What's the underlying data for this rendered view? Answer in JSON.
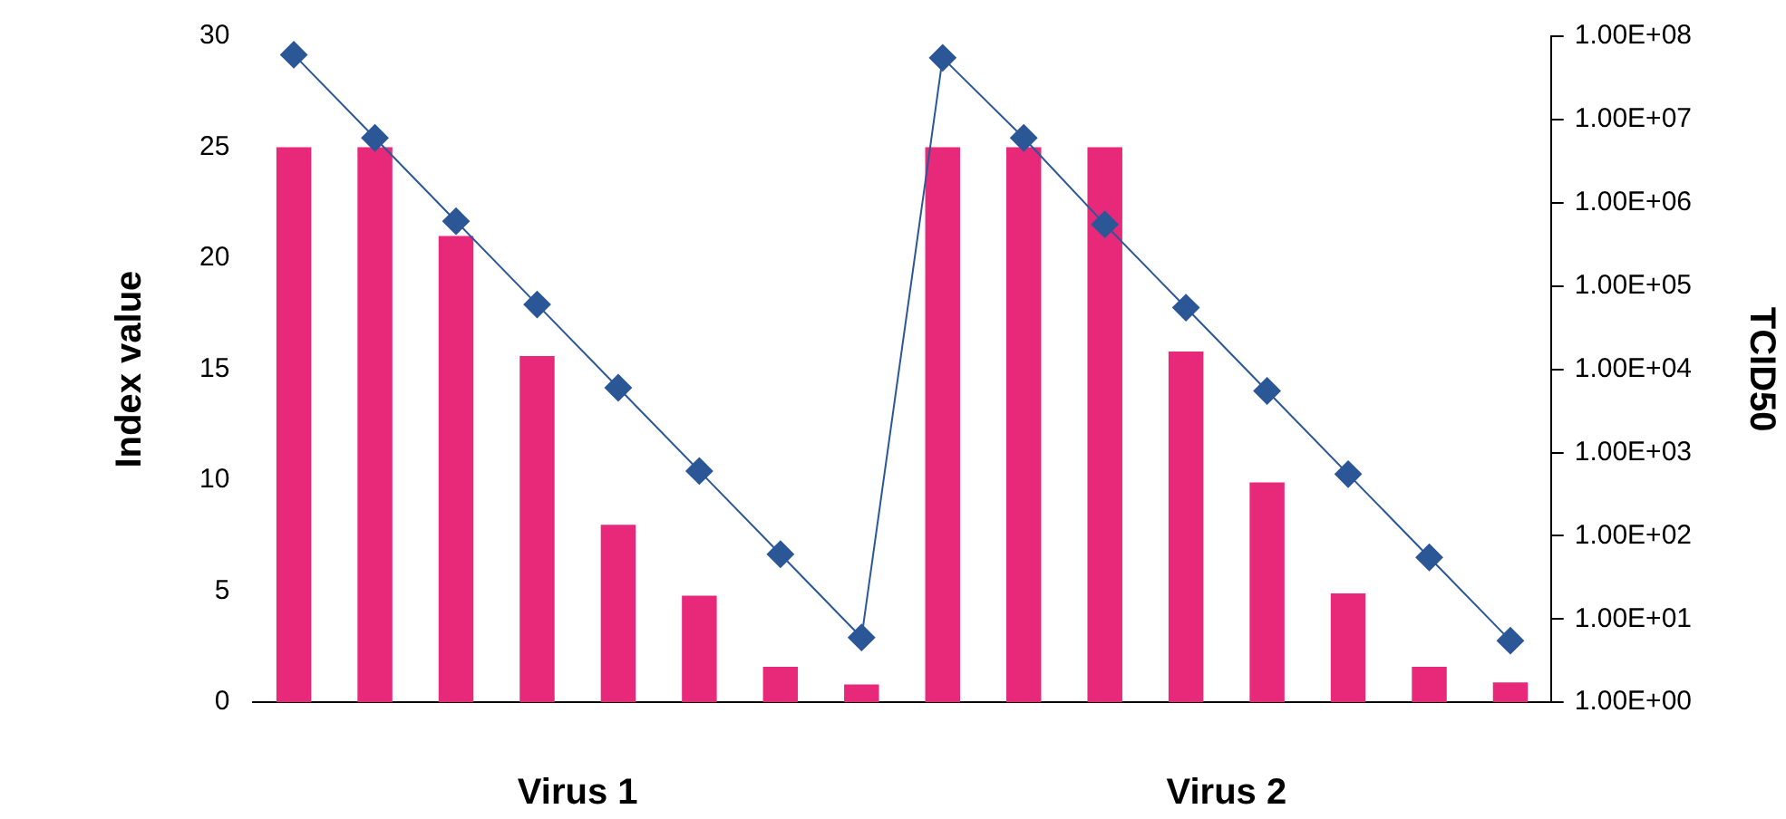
{
  "chart_data": {
    "type": "bar",
    "ylabel": "Index value",
    "y2label": "TCID50",
    "categories": [
      null,
      null,
      null,
      null,
      null,
      null,
      null,
      null,
      null,
      null,
      null,
      null,
      null,
      null,
      null,
      null
    ],
    "annotations": [
      "Virus 1",
      "Virus 2"
    ],
    "series": [
      {
        "color": "#e8297a",
        "values": [
          25,
          25,
          21,
          15.6,
          8,
          4.8,
          1.6,
          0.8,
          25,
          25,
          25,
          15.8,
          9.9,
          4.9,
          1.6,
          0.9
        ]
      },
      {
        "type": "line",
        "axis": "y2",
        "color": "#2b5797",
        "values": [
          60000000,
          6000000,
          600000,
          60000,
          6000,
          600,
          60,
          6,
          55000000,
          6000000,
          550000,
          55000,
          5500,
          550,
          55,
          5.5
        ]
      }
    ],
    "ylim": [
      0,
      30
    ],
    "yticks": [
      0,
      5,
      10,
      15,
      20,
      25,
      30
    ],
    "y2lim": [
      1,
      100000000
    ],
    "y2ticks": [
      {
        "value": 1,
        "label": "1.00E+00"
      },
      {
        "value": 10,
        "label": "1.00E+01"
      },
      {
        "value": 100,
        "label": "1.00E+02"
      },
      {
        "value": 1000,
        "label": "1.00E+03"
      },
      {
        "value": 10000,
        "label": "1.00E+04"
      },
      {
        "value": 100000,
        "label": "1.00E+05"
      },
      {
        "value": 1000000,
        "label": "1.00E+06"
      },
      {
        "value": 10000000,
        "label": "1.00E+07"
      },
      {
        "value": 100000000,
        "label": "1.00E+08"
      }
    ],
    "log": "y2",
    "grid": false,
    "legend": false,
    "marker": "diamond",
    "line_style": "solid"
  }
}
